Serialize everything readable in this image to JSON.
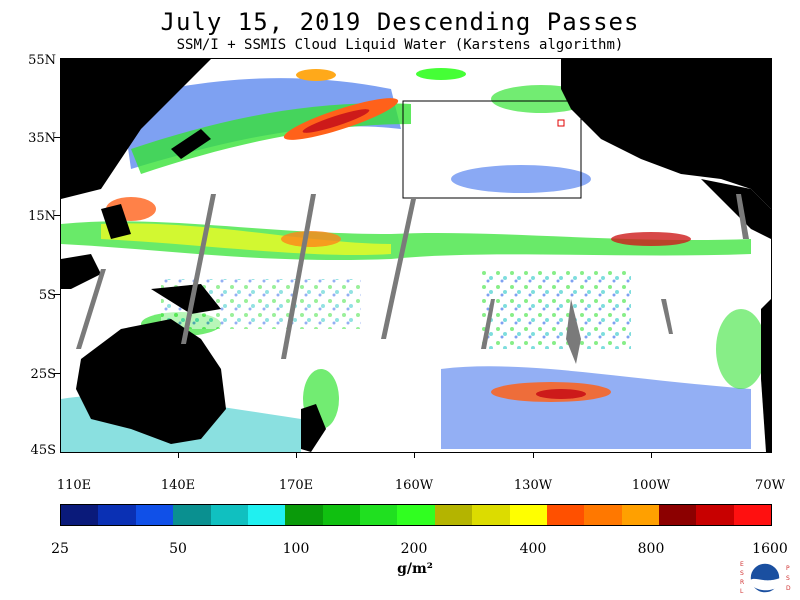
{
  "title": "July 15, 2019  Descending Passes",
  "subtitle": "SSM/I + SSMIS Cloud Liquid Water (Karstens algorithm)",
  "lat_labels": [
    "55N",
    "35N",
    "15N",
    "5S",
    "25S",
    "45S"
  ],
  "lon_labels": [
    "110E",
    "140E",
    "170E",
    "160W",
    "130W",
    "100W",
    "70W"
  ],
  "colorbar": {
    "colors": [
      "#0a1a7a",
      "#0a30b4",
      "#1050e8",
      "#0a9090",
      "#10c0c0",
      "#20f0f0",
      "#0a9a0a",
      "#10c010",
      "#20e020",
      "#30ff20",
      "#b4b400",
      "#dcdc00",
      "#ffff00",
      "#ff5000",
      "#ff7800",
      "#ffa000",
      "#8c0000",
      "#c80000",
      "#ff1010"
    ],
    "labels": [
      "25",
      "50",
      "100",
      "200",
      "400",
      "800",
      "1600"
    ]
  },
  "unit": "g/m²",
  "logo": {
    "letters_left": "ESRL",
    "letters_right": "PSD",
    "center": "NOAA"
  }
}
